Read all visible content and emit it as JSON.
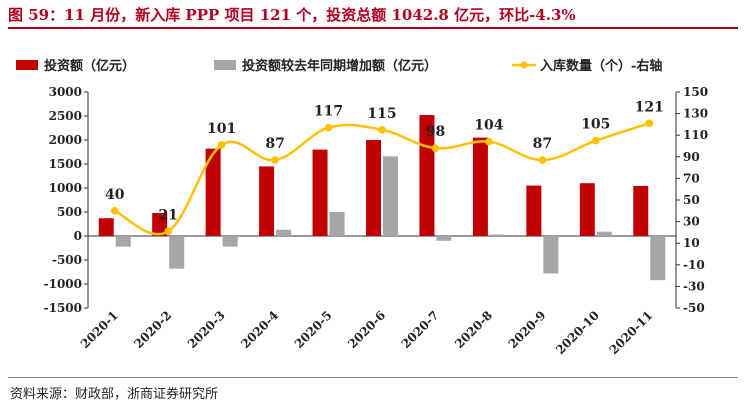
{
  "header": {
    "title": "图 59：11 月份，新入库 PPP 项目 121 个，投资总额 1042.8 亿元，环比-4.3%"
  },
  "footer": {
    "source": "资料来源：财政部，浙商证券研究所"
  },
  "chart_data": {
    "type": "bar",
    "categories": [
      "2020-1",
      "2020-2",
      "2020-3",
      "2020-4",
      "2020-5",
      "2020-6",
      "2020-7",
      "2020-8",
      "2020-9",
      "2020-10",
      "2020-11"
    ],
    "series": [
      {
        "name": "投资额（亿元）",
        "type": "bar",
        "axis": "left",
        "color": "#c00000",
        "values": [
          370,
          480,
          1820,
          1450,
          1800,
          2000,
          2520,
          2050,
          1050,
          1100,
          1043
        ]
      },
      {
        "name": "投资额较去年同期增加额（亿元）",
        "type": "bar",
        "axis": "left",
        "color": "#a6a6a6",
        "values": [
          -220,
          -680,
          -220,
          130,
          500,
          1660,
          -100,
          30,
          -780,
          90,
          -920
        ]
      },
      {
        "name": "入库数量（个）-右轴",
        "type": "line",
        "axis": "right",
        "color": "#ffc000",
        "values": [
          40,
          21,
          101,
          87,
          117,
          115,
          98,
          104,
          87,
          105,
          121
        ],
        "labels": [
          "40",
          "21",
          "101",
          "87",
          "117",
          "115",
          "98",
          "104",
          "87",
          "105",
          "121"
        ]
      }
    ],
    "y_left": {
      "ylim": [
        -1500,
        3000
      ],
      "ticks": [
        -1500,
        -1000,
        -500,
        0,
        500,
        1000,
        1500,
        2000,
        2500,
        3000
      ],
      "tick_labels": [
        "-1500",
        "-1000",
        "-500",
        "0",
        "500",
        "1000",
        "1500",
        "2000",
        "2500",
        "3000"
      ]
    },
    "y_right": {
      "ylim": [
        -50,
        150
      ],
      "ticks": [
        -50,
        -30,
        -10,
        10,
        30,
        50,
        70,
        90,
        110,
        130,
        150
      ],
      "tick_labels": [
        "-50",
        "-30",
        "-10",
        "10",
        "30",
        "50",
        "70",
        "90",
        "110",
        "130",
        "150"
      ]
    },
    "legend_position": "top",
    "grid": false
  }
}
